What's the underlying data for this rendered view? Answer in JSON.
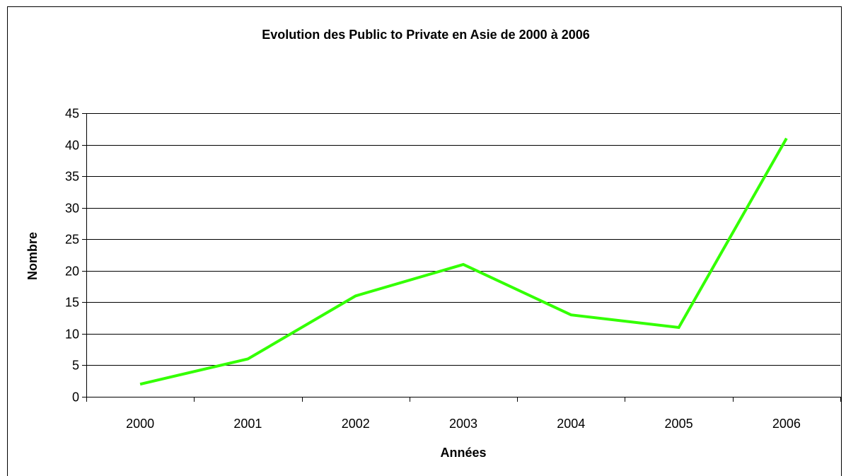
{
  "chart_data": {
    "type": "line",
    "title": "Evolution des Public to Private en Asie de 2000 à 2006",
    "xlabel": "Années",
    "ylabel": "Nombre",
    "categories": [
      "2000",
      "2001",
      "2002",
      "2003",
      "2004",
      "2005",
      "2006"
    ],
    "series": [
      {
        "values": [
          2,
          6,
          16,
          21,
          13,
          11,
          41
        ],
        "color": "#33ff00"
      }
    ],
    "ylim": [
      0,
      45
    ],
    "yticks": [
      0,
      5,
      10,
      15,
      20,
      25,
      30,
      35,
      40,
      45
    ],
    "grid": true,
    "legend": "none"
  }
}
